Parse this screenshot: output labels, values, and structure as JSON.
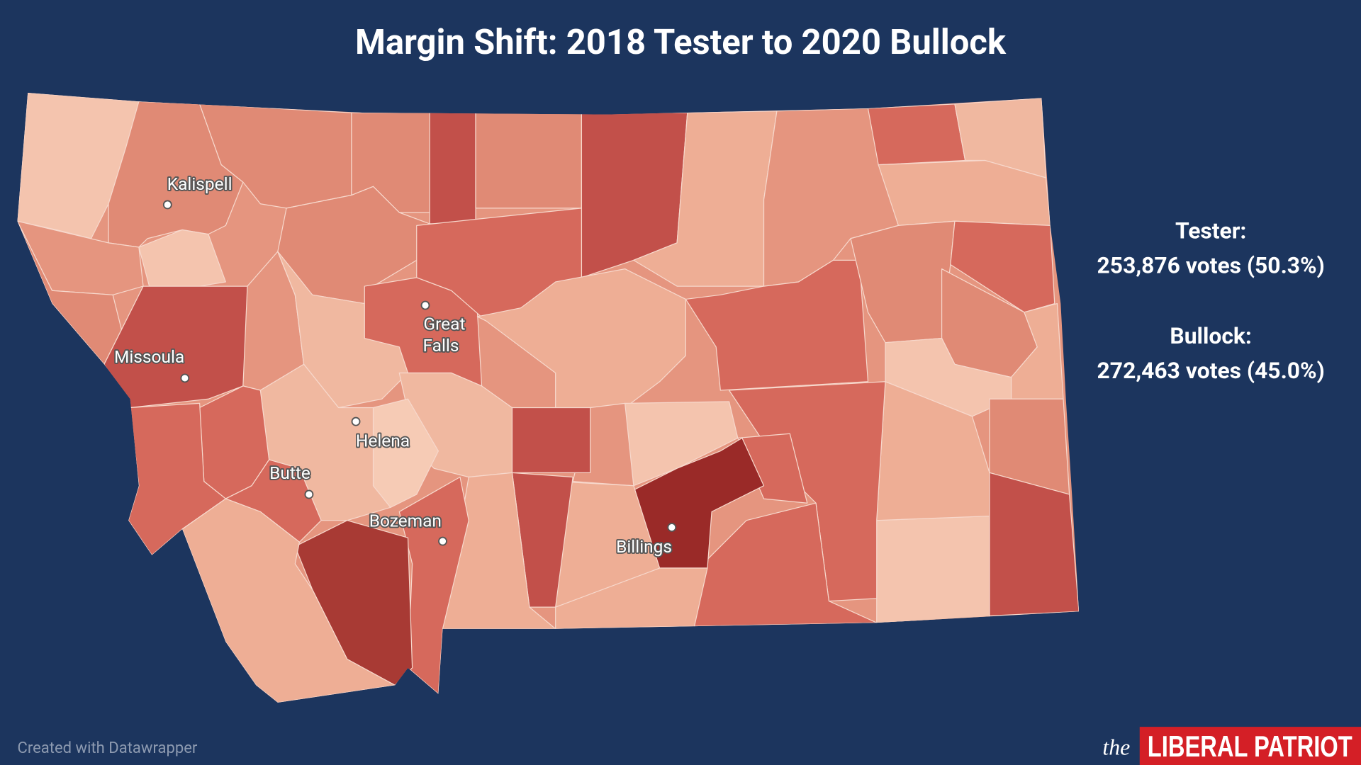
{
  "title": "Margin Shift: 2018 Tester to 2020 Bullock",
  "cities": [
    {
      "lines": [
        "Kalispell"
      ]
    },
    {
      "lines": [
        "Great",
        "Falls"
      ]
    },
    {
      "lines": [
        "Missoula"
      ]
    },
    {
      "lines": [
        "Helena"
      ]
    },
    {
      "lines": [
        "Butte"
      ]
    },
    {
      "lines": [
        "Bozeman"
      ]
    },
    {
      "lines": [
        "Billings"
      ]
    }
  ],
  "results": [
    {
      "candidate": "Tester:",
      "detail": "253,876 votes (50.3%)"
    },
    {
      "candidate": "Bullock:",
      "detail": "272,463 votes (45.0%)"
    }
  ],
  "credit": "Created with Datawrapper",
  "logo": {
    "prefix": "the",
    "name": "LIBERAL PATRIOT"
  }
}
